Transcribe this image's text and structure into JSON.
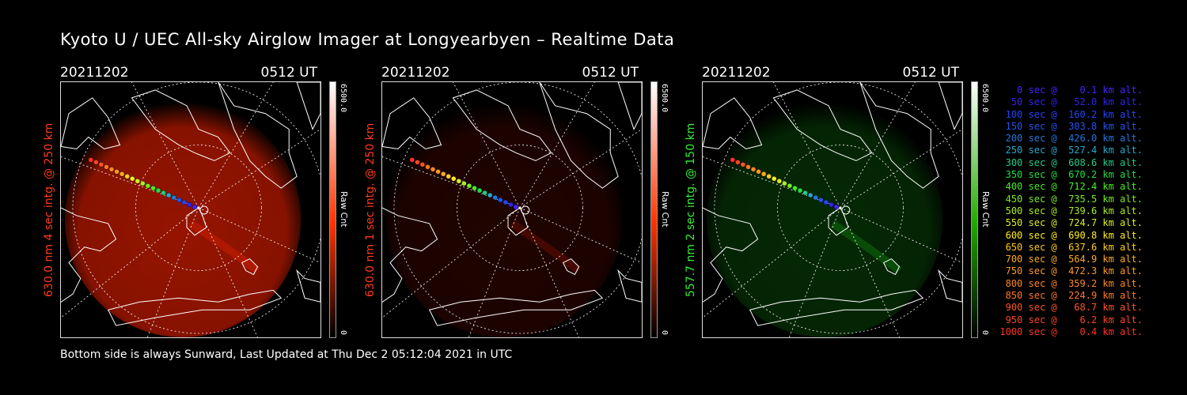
{
  "title": "Kyoto U / UEC All-sky Airglow Imager at Longyearbyen – Realtime Data",
  "panels": [
    {
      "date": "20211202",
      "time": "0512 UT",
      "side_label": "630.0 nm 4 sec intg. @ 250 km",
      "label_color": "#ff3a1a",
      "cbar_max": "6500.0",
      "cbar_unit": "Raw Cnt",
      "cbar_min": "0",
      "cbar_color": "#ff3300",
      "glow_color": "#b01800",
      "glow_intensity": 0.85
    },
    {
      "date": "20211202",
      "time": "0512 UT",
      "side_label": "630.0 nm 1 sec intg. @ 250 km",
      "label_color": "#ff3a1a",
      "cbar_max": "6500.0",
      "cbar_unit": "Raw Cnt",
      "cbar_min": "0",
      "cbar_color": "#ff3300",
      "glow_color": "#5a0a00",
      "glow_intensity": 0.35
    },
    {
      "date": "20211202",
      "time": "0512 UT",
      "side_label": "557.7 nm 2 sec intg. @ 150 km",
      "label_color": "#33ee33",
      "cbar_max": "6500.0",
      "cbar_unit": "Raw Cnt",
      "cbar_min": "0",
      "cbar_color": "#22aa00",
      "glow_color": "#0a5a0a",
      "glow_intensity": 0.45
    }
  ],
  "legend": [
    {
      "text": "   0 sec @    0.1 km alt.",
      "color": "#4422ff"
    },
    {
      "text": "  50 sec @   52.0 km alt.",
      "color": "#3322ee"
    },
    {
      "text": " 100 sec @  160.2 km alt.",
      "color": "#2244ff"
    },
    {
      "text": " 150 sec @  303.8 km alt.",
      "color": "#2255ee"
    },
    {
      "text": " 200 sec @  426.0 km alt.",
      "color": "#2277dd"
    },
    {
      "text": " 250 sec @  527.4 km alt.",
      "color": "#22aacc"
    },
    {
      "text": " 300 sec @  608.6 km alt.",
      "color": "#22cc88"
    },
    {
      "text": " 350 sec @  670.2 km alt.",
      "color": "#22dd44"
    },
    {
      "text": " 400 sec @  712.4 km alt.",
      "color": "#44ee22"
    },
    {
      "text": " 450 sec @  735.5 km alt.",
      "color": "#77ee22"
    },
    {
      "text": " 500 sec @  739.6 km alt.",
      "color": "#aaee22"
    },
    {
      "text": " 550 sec @  724.7 km alt.",
      "color": "#ddee22"
    },
    {
      "text": " 600 sec @  690.8 km alt.",
      "color": "#ffee22"
    },
    {
      "text": " 650 sec @  637.6 km alt.",
      "color": "#ffcc22"
    },
    {
      "text": " 700 sec @  564.9 km alt.",
      "color": "#ffaa22"
    },
    {
      "text": " 750 sec @  472.3 km alt.",
      "color": "#ff9922"
    },
    {
      "text": " 800 sec @  359.2 km alt.",
      "color": "#ff8822"
    },
    {
      "text": " 850 sec @  224.9 km alt.",
      "color": "#ff7722"
    },
    {
      "text": " 900 sec @   68.7 km alt.",
      "color": "#ff5522"
    },
    {
      "text": " 950 sec @    6.2 km alt.",
      "color": "#ff4422"
    },
    {
      "text": "1000 sec @    0.4 km alt.",
      "color": "#ff3322"
    }
  ],
  "footer": "Bottom side is always Sunward, Last Updated at Thu Dec  2 05:12:04 2021 in UTC"
}
